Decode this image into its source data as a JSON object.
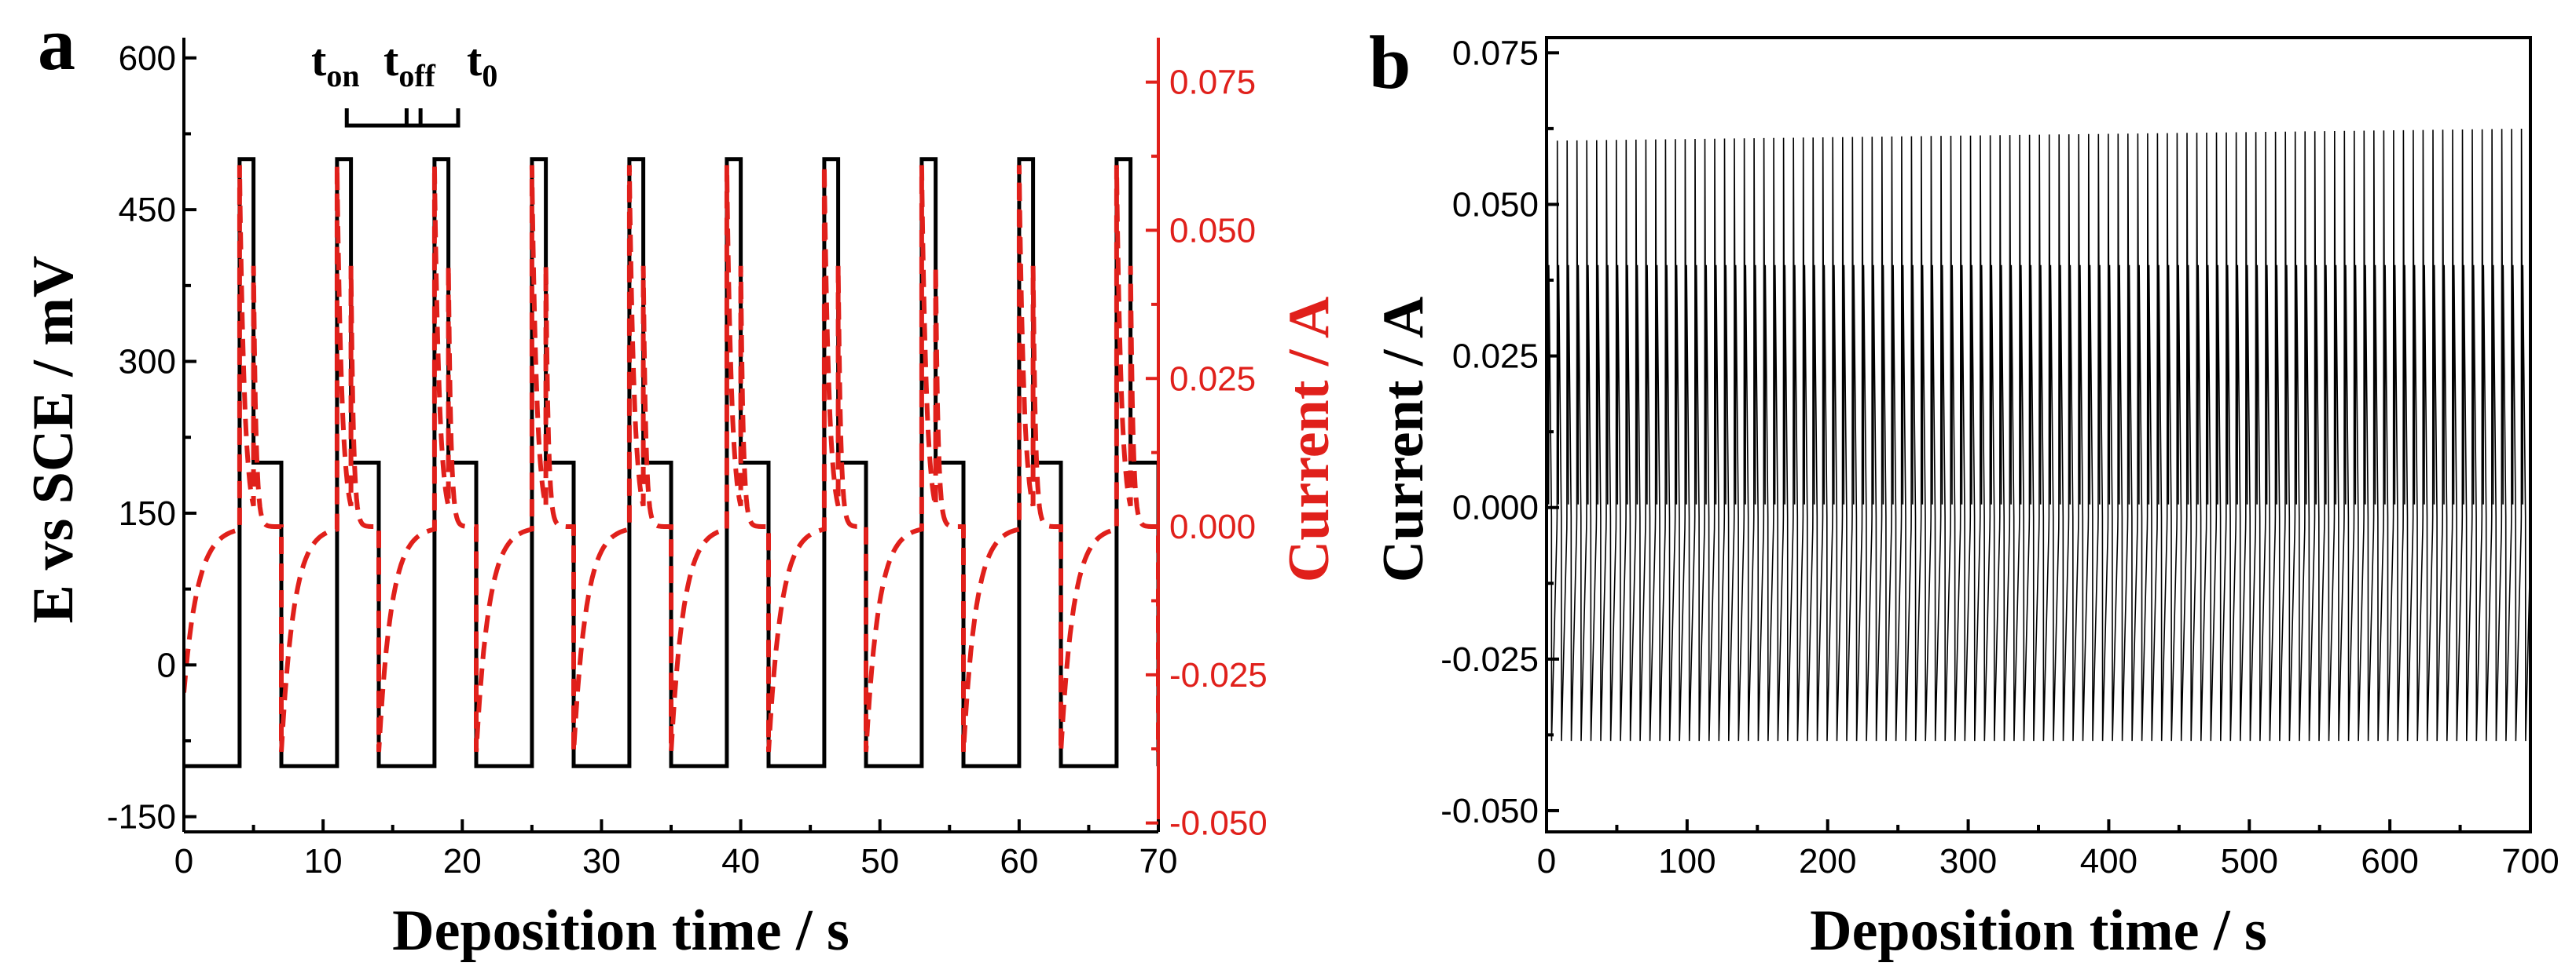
{
  "figure": {
    "panels": [
      {
        "letter": "a"
      },
      {
        "letter": "b"
      }
    ]
  },
  "chart_data": [
    {
      "type": "line",
      "panel": "a",
      "title": "",
      "xlabel": "Deposition time / s",
      "ylabel": "E vs SCE / mV",
      "y2label": "Current / A",
      "xlim": [
        0,
        70
      ],
      "ylim": [
        -165,
        620
      ],
      "y2lim": [
        -0.0515,
        0.0825
      ],
      "x_ticks": [
        0,
        10,
        20,
        30,
        40,
        50,
        60,
        70
      ],
      "y_ticks": [
        -150,
        0,
        150,
        300,
        450,
        600
      ],
      "y2_ticks": [
        -0.05,
        -0.025,
        0.0,
        0.025,
        0.05,
        0.075
      ],
      "x_tick_labels": [
        "0",
        "10",
        "20",
        "30",
        "40",
        "50",
        "60",
        "70"
      ],
      "y_tick_labels": [
        "-150",
        "0",
        "150",
        "300",
        "450",
        "600"
      ],
      "y2_tick_labels": [
        "-0.050",
        "-0.025",
        "0.000",
        "0.025",
        "0.050",
        "0.075"
      ],
      "pulse": {
        "period": 7,
        "first_on": 4,
        "t_on": 1,
        "t_off": 2,
        "t_0": 4,
        "E_on": 500,
        "E_off": 200,
        "E_0": -100,
        "cycles": 10
      },
      "current_levels": {
        "peak": 0.061,
        "decay_to": 0.0,
        "min": -0.038
      },
      "series": [
        {
          "name": "E vs SCE (mV)",
          "axis": "left",
          "color": "#000000",
          "style": "solid"
        },
        {
          "name": "Current (A)",
          "axis": "right",
          "color": "#e0201b",
          "style": "dashed"
        }
      ],
      "annotation": {
        "t": "t",
        "on": "on",
        "off": "off",
        "zero": "0",
        "bracket_x": [
          11.7,
          16,
          17,
          19.7
        ]
      }
    },
    {
      "type": "line",
      "panel": "b",
      "title": "",
      "xlabel": "Deposition time / s",
      "ylabel": "Current / A",
      "xlim": [
        0,
        700
      ],
      "ylim": [
        -0.0535,
        0.0775
      ],
      "x_ticks": [
        0,
        100,
        200,
        300,
        400,
        500,
        600,
        700
      ],
      "y_ticks": [
        -0.05,
        -0.025,
        0.0,
        0.025,
        0.05,
        0.075
      ],
      "x_tick_labels": [
        "0",
        "100",
        "200",
        "300",
        "400",
        "500",
        "600",
        "700"
      ],
      "y_tick_labels": [
        "-0.050",
        "-0.025",
        "0.000",
        "0.025",
        "0.050",
        "0.075"
      ],
      "series": [
        {
          "name": "Current (A)",
          "color": "#000000",
          "period": 7,
          "first_on": 0.5,
          "peak_start": 0.0605,
          "peak_end": 0.0625,
          "shoulder": 0.04,
          "baseline": -0.0015,
          "min": -0.0385
        }
      ]
    }
  ]
}
